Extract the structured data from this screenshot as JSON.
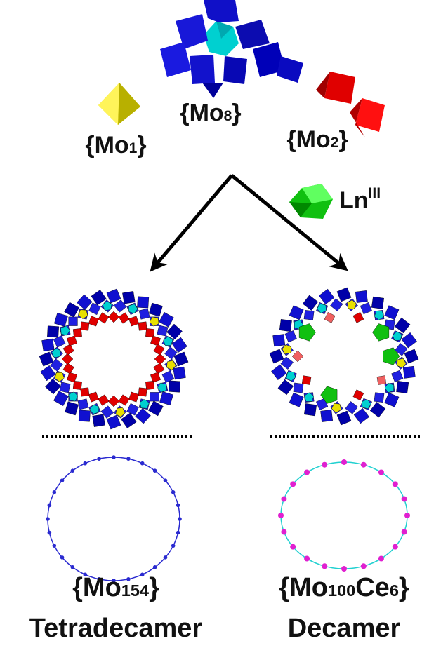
{
  "building_blocks": {
    "mo1": {
      "segments": [
        {
          "text": "{Mo"
        },
        {
          "sub": "1"
        },
        {
          "text": "}"
        }
      ]
    },
    "mo8": {
      "segments": [
        {
          "text": "{Mo"
        },
        {
          "sub": "8"
        },
        {
          "text": "}"
        }
      ]
    },
    "mo2": {
      "segments": [
        {
          "text": "{Mo"
        },
        {
          "sub": "2"
        },
        {
          "text": "}"
        }
      ]
    },
    "ln": {
      "segments": [
        {
          "text": "Ln"
        },
        {
          "sup": "III"
        }
      ]
    }
  },
  "products": [
    {
      "formula": {
        "segments": [
          {
            "text": "{Mo"
          },
          {
            "sub": "154"
          },
          {
            "text": "}"
          }
        ]
      },
      "name": "Tetradecamer"
    },
    {
      "formula": {
        "segments": [
          {
            "text": "{Mo"
          },
          {
            "sub": "100"
          },
          {
            "text": "Ce"
          },
          {
            "sub": "6"
          },
          {
            "text": "}"
          }
        ]
      },
      "name": "Decamer"
    }
  ]
}
